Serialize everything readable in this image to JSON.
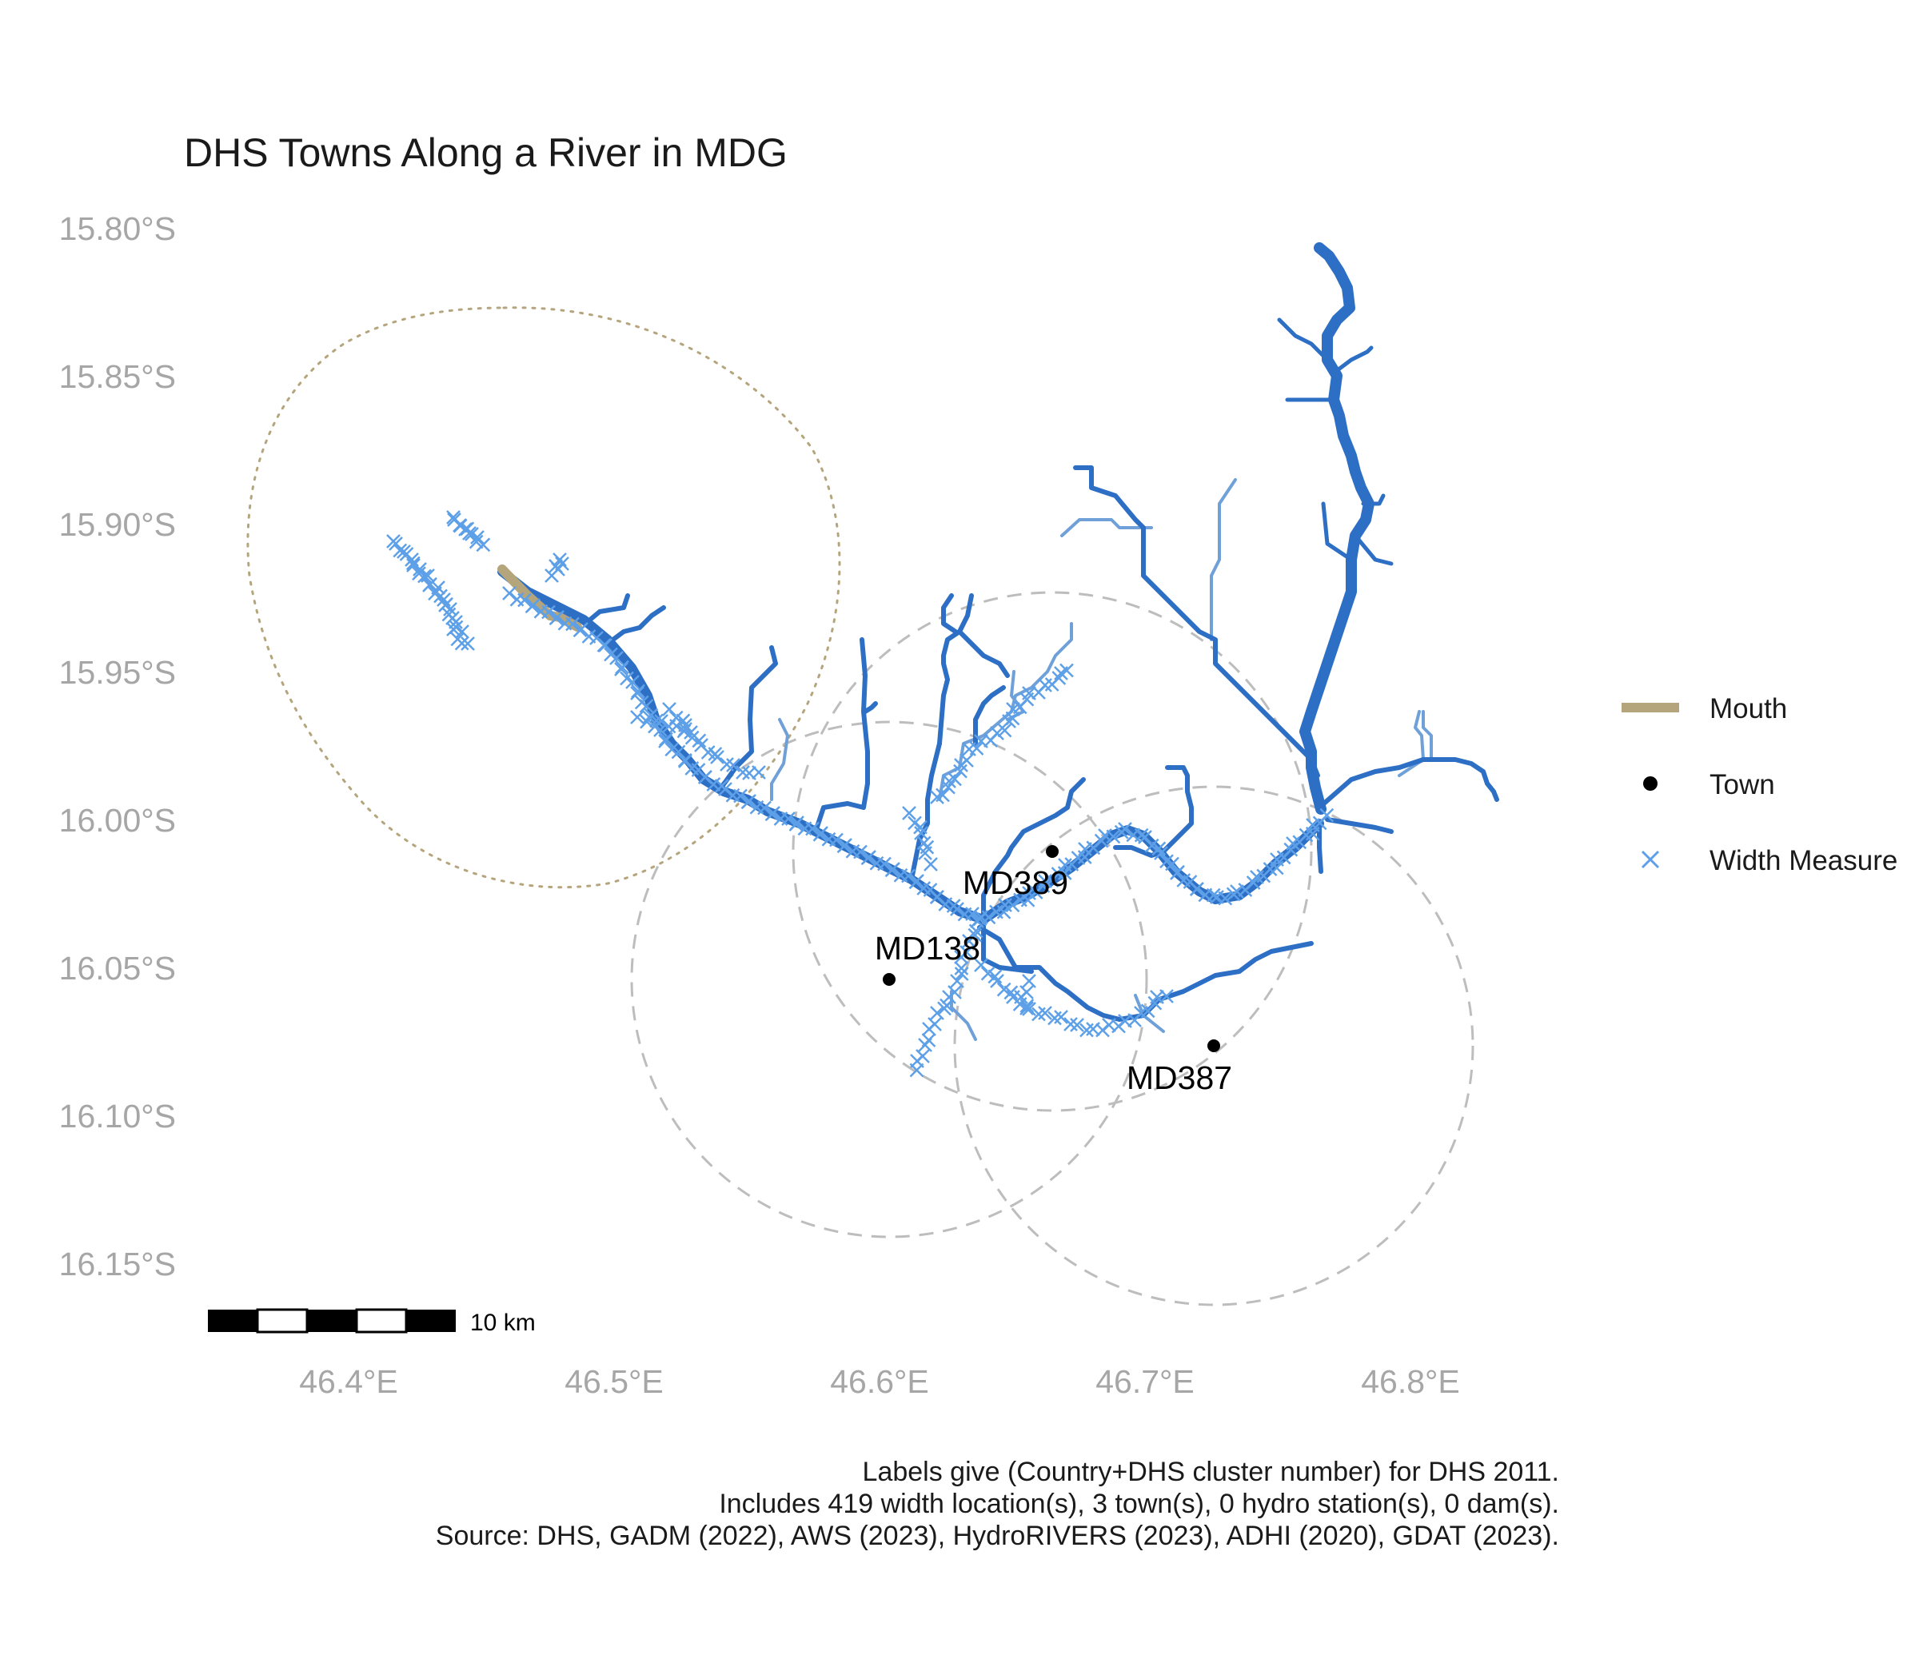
{
  "title": "DHS Towns Along a River in MDG",
  "axes": {
    "y_ticks": [
      "15.80°S",
      "15.85°S",
      "15.90°S",
      "15.95°S",
      "16.00°S",
      "16.05°S",
      "16.10°S",
      "16.15°S"
    ],
    "x_ticks": [
      "46.4°E",
      "46.5°E",
      "46.6°E",
      "46.7°E",
      "46.8°E"
    ]
  },
  "legend": {
    "position": "right",
    "items": [
      {
        "label": "Mouth",
        "symbol": "line",
        "color": "#b5a57c"
      },
      {
        "label": "Town",
        "symbol": "dot",
        "color": "#000000"
      },
      {
        "label": "Width Measure",
        "symbol": "x",
        "color": "#5ea0e8"
      }
    ]
  },
  "towns": [
    {
      "id": "MD389",
      "lon": 46.665,
      "lat": -16.011
    },
    {
      "id": "MD138",
      "lon": 46.604,
      "lat": -16.053
    },
    {
      "id": "MD387",
      "lon": 46.726,
      "lat": -16.076
    }
  ],
  "scale_bar": {
    "label": "10 km"
  },
  "caption": [
    "Labels give (Country+DHS cluster number) for DHS 2011.",
    "Includes 419 width location(s), 3 town(s), 0 hydro station(s), 0 dam(s).",
    "Source: DHS, GADM (2022), AWS (2023), HydroRIVERS (2023), ADHI (2020), GDAT (2023)."
  ],
  "colors": {
    "river_main": "#2d6fc4",
    "river_minor": "#6fa0d8",
    "width_measure": "#5ea0e8",
    "mouth": "#b5a57c",
    "buffer": "#bdbdbd",
    "axis_text": "#a6a6a6"
  }
}
